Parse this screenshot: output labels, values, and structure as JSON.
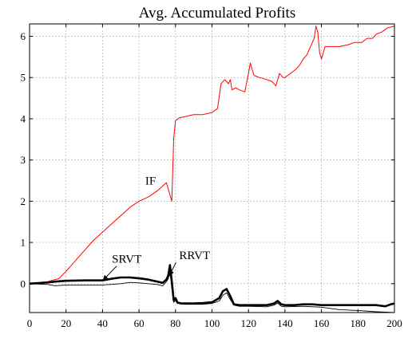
{
  "chart_data": {
    "type": "line",
    "title": "Avg. Accumulated Profits",
    "xlabel": "",
    "ylabel": "",
    "xlim": [
      0,
      200
    ],
    "ylim": [
      -0.7,
      6.3
    ],
    "xticks": [
      0,
      20,
      40,
      60,
      80,
      100,
      120,
      140,
      160,
      180,
      200
    ],
    "yticks": [
      0,
      1,
      2,
      3,
      4,
      5,
      6
    ],
    "grid": true,
    "series": [
      {
        "name": "IF",
        "color": "#ff0000",
        "width": 1,
        "points": [
          [
            0,
            0
          ],
          [
            5,
            0.02
          ],
          [
            10,
            0.05
          ],
          [
            14,
            0.1
          ],
          [
            16,
            0.12
          ],
          [
            20,
            0.3
          ],
          [
            25,
            0.55
          ],
          [
            30,
            0.8
          ],
          [
            35,
            1.05
          ],
          [
            40,
            1.25
          ],
          [
            45,
            1.45
          ],
          [
            50,
            1.65
          ],
          [
            55,
            1.85
          ],
          [
            60,
            2.0
          ],
          [
            65,
            2.1
          ],
          [
            70,
            2.25
          ],
          [
            75,
            2.45
          ],
          [
            76,
            2.3
          ],
          [
            77,
            2.15
          ],
          [
            78,
            2.0
          ],
          [
            79,
            3.5
          ],
          [
            80,
            3.95
          ],
          [
            82,
            4.02
          ],
          [
            85,
            4.05
          ],
          [
            90,
            4.1
          ],
          [
            95,
            4.1
          ],
          [
            100,
            4.15
          ],
          [
            103,
            4.25
          ],
          [
            105,
            4.85
          ],
          [
            107,
            4.95
          ],
          [
            109,
            4.85
          ],
          [
            110,
            4.95
          ],
          [
            111,
            4.7
          ],
          [
            113,
            4.75
          ],
          [
            115,
            4.7
          ],
          [
            118,
            4.65
          ],
          [
            120,
            5.1
          ],
          [
            121,
            5.35
          ],
          [
            123,
            5.05
          ],
          [
            126,
            5.0
          ],
          [
            130,
            4.95
          ],
          [
            133,
            4.9
          ],
          [
            135,
            4.8
          ],
          [
            137,
            5.1
          ],
          [
            139,
            5.0
          ],
          [
            140,
            5.0
          ],
          [
            143,
            5.1
          ],
          [
            146,
            5.2
          ],
          [
            148,
            5.3
          ],
          [
            150,
            5.45
          ],
          [
            152,
            5.55
          ],
          [
            154,
            5.75
          ],
          [
            156,
            5.95
          ],
          [
            157,
            6.25
          ],
          [
            158,
            6.1
          ],
          [
            159,
            5.6
          ],
          [
            160,
            5.45
          ],
          [
            162,
            5.75
          ],
          [
            165,
            5.75
          ],
          [
            170,
            5.75
          ],
          [
            175,
            5.8
          ],
          [
            178,
            5.85
          ],
          [
            182,
            5.85
          ],
          [
            185,
            5.95
          ],
          [
            188,
            5.95
          ],
          [
            190,
            6.05
          ],
          [
            193,
            6.1
          ],
          [
            196,
            6.2
          ],
          [
            200,
            6.25
          ]
        ]
      },
      {
        "name": "RRVT",
        "color": "#000000",
        "width": 2.6,
        "points": [
          [
            0,
            0
          ],
          [
            10,
            0.03
          ],
          [
            14,
            0.05
          ],
          [
            20,
            0.07
          ],
          [
            30,
            0.08
          ],
          [
            40,
            0.08
          ],
          [
            45,
            0.12
          ],
          [
            50,
            0.15
          ],
          [
            55,
            0.15
          ],
          [
            60,
            0.13
          ],
          [
            65,
            0.1
          ],
          [
            70,
            0.05
          ],
          [
            73,
            0.02
          ],
          [
            75,
            0.1
          ],
          [
            76,
            0.2
          ],
          [
            77,
            0.45
          ],
          [
            78,
            0.05
          ],
          [
            79,
            -0.4
          ],
          [
            80,
            -0.35
          ],
          [
            81,
            -0.45
          ],
          [
            83,
            -0.48
          ],
          [
            90,
            -0.48
          ],
          [
            95,
            -0.47
          ],
          [
            100,
            -0.45
          ],
          [
            104,
            -0.35
          ],
          [
            106,
            -0.18
          ],
          [
            108,
            -0.13
          ],
          [
            110,
            -0.3
          ],
          [
            112,
            -0.5
          ],
          [
            115,
            -0.52
          ],
          [
            120,
            -0.52
          ],
          [
            130,
            -0.52
          ],
          [
            134,
            -0.48
          ],
          [
            136,
            -0.42
          ],
          [
            138,
            -0.5
          ],
          [
            140,
            -0.52
          ],
          [
            145,
            -0.52
          ],
          [
            150,
            -0.5
          ],
          [
            155,
            -0.5
          ],
          [
            160,
            -0.52
          ],
          [
            170,
            -0.52
          ],
          [
            180,
            -0.52
          ],
          [
            190,
            -0.52
          ],
          [
            195,
            -0.55
          ],
          [
            198,
            -0.5
          ],
          [
            200,
            -0.48
          ]
        ]
      },
      {
        "name": "SRVT",
        "color": "#000000",
        "width": 0.9,
        "points": [
          [
            0,
            0
          ],
          [
            10,
            -0.02
          ],
          [
            14,
            -0.05
          ],
          [
            20,
            -0.03
          ],
          [
            30,
            -0.03
          ],
          [
            40,
            -0.03
          ],
          [
            50,
            0.0
          ],
          [
            55,
            0.03
          ],
          [
            60,
            0.02
          ],
          [
            65,
            0.0
          ],
          [
            70,
            -0.02
          ],
          [
            73,
            -0.05
          ],
          [
            75,
            0.05
          ],
          [
            76,
            0.12
          ],
          [
            77,
            0.3
          ],
          [
            78,
            -0.1
          ],
          [
            79,
            -0.45
          ],
          [
            80,
            -0.4
          ],
          [
            81,
            -0.48
          ],
          [
            85,
            -0.5
          ],
          [
            90,
            -0.5
          ],
          [
            95,
            -0.5
          ],
          [
            100,
            -0.48
          ],
          [
            104,
            -0.42
          ],
          [
            106,
            -0.28
          ],
          [
            108,
            -0.22
          ],
          [
            110,
            -0.38
          ],
          [
            112,
            -0.52
          ],
          [
            115,
            -0.55
          ],
          [
            120,
            -0.55
          ],
          [
            130,
            -0.56
          ],
          [
            134,
            -0.52
          ],
          [
            136,
            -0.47
          ],
          [
            138,
            -0.55
          ],
          [
            140,
            -0.56
          ],
          [
            150,
            -0.55
          ],
          [
            160,
            -0.57
          ],
          [
            170,
            -0.63
          ],
          [
            180,
            -0.65
          ],
          [
            190,
            -0.68
          ],
          [
            200,
            -0.7
          ]
        ]
      }
    ],
    "annotations": [
      {
        "text": "IF",
        "x": 71,
        "y": 2.35
      },
      {
        "text": "SRVT",
        "x": 39,
        "y": 0.08
      },
      {
        "text": "RRVT",
        "x": 75,
        "y": 0.13
      }
    ]
  }
}
